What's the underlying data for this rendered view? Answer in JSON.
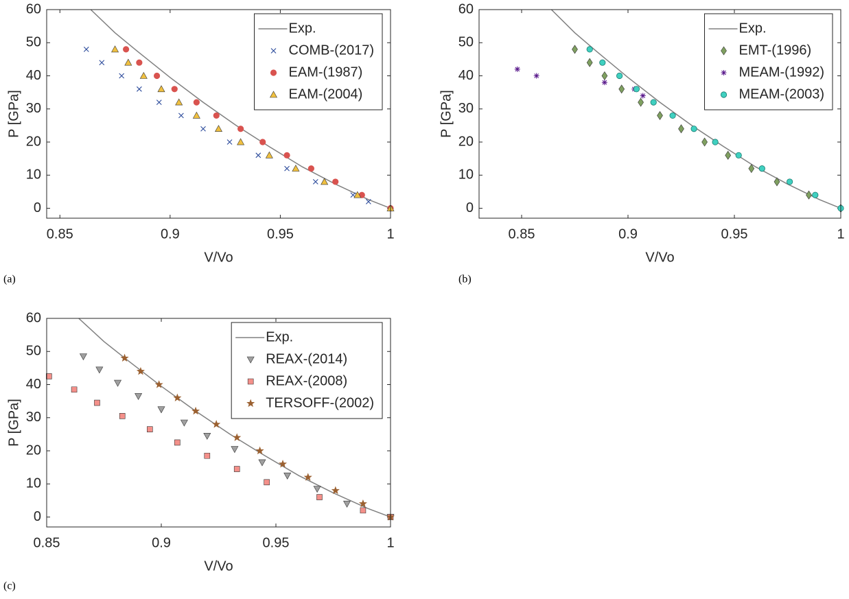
{
  "chart_data": [
    {
      "type": "scatter",
      "panel_label": "(a)",
      "xlabel": "V/Vo",
      "ylabel": "P [GPa]",
      "xlim": [
        0.844,
        1.0
      ],
      "ylim": [
        -3,
        60
      ],
      "xticks": [
        0.85,
        0.9,
        0.95,
        1
      ],
      "yticks": [
        0,
        10,
        20,
        30,
        40,
        50,
        60
      ],
      "legend": "upper right",
      "series": [
        {
          "name": "Exp.",
          "marker": "line",
          "color": "#808080",
          "x": [
            0.864,
            0.875,
            0.885,
            0.9,
            0.915,
            0.93,
            0.945,
            0.96,
            0.975,
            0.99,
            1.0
          ],
          "values": [
            60,
            53,
            47.5,
            39.5,
            32,
            25,
            18.6,
            12.5,
            7.3,
            2.6,
            0
          ]
        },
        {
          "name": "COMB-(2017)",
          "marker": "x",
          "color": "#2b4a9b",
          "x": [
            0.862,
            0.869,
            0.878,
            0.886,
            0.895,
            0.905,
            0.915,
            0.927,
            0.94,
            0.953,
            0.966,
            0.983,
            0.99
          ],
          "values": [
            48,
            44,
            40,
            36,
            32,
            28,
            24,
            20,
            16,
            12,
            8,
            4,
            2
          ]
        },
        {
          "name": "EAM-(1987)",
          "marker": "circle",
          "color": "#d9534f",
          "x": [
            0.88,
            0.886,
            0.894,
            0.902,
            0.912,
            0.921,
            0.932,
            0.942,
            0.953,
            0.964,
            0.975,
            0.987,
            1.0
          ],
          "values": [
            48,
            44,
            40,
            36,
            32,
            28,
            24,
            20,
            16,
            12,
            8,
            4,
            0
          ]
        },
        {
          "name": "EAM-(2004)",
          "marker": "triangle",
          "color": "#f0c040",
          "x": [
            0.875,
            0.881,
            0.888,
            0.896,
            0.904,
            0.912,
            0.922,
            0.932,
            0.945,
            0.957,
            0.97,
            0.985,
            1.0
          ],
          "values": [
            48,
            44,
            40,
            36,
            32,
            28,
            24,
            20,
            16,
            12,
            8,
            4,
            0
          ]
        }
      ]
    },
    {
      "type": "scatter",
      "panel_label": "(b)",
      "xlabel": "V/Vo",
      "ylabel": "P [GPa]",
      "xlim": [
        0.83,
        1.0
      ],
      "ylim": [
        -3,
        60
      ],
      "xticks": [
        0.85,
        0.9,
        0.95,
        1
      ],
      "yticks": [
        0,
        10,
        20,
        30,
        40,
        50,
        60
      ],
      "legend": "upper right",
      "series": [
        {
          "name": "Exp.",
          "marker": "line",
          "color": "#808080",
          "x": [
            0.864,
            0.875,
            0.885,
            0.9,
            0.915,
            0.93,
            0.945,
            0.96,
            0.975,
            0.99,
            1.0
          ],
          "values": [
            60,
            53,
            47.5,
            39.5,
            32,
            25,
            18.6,
            12.5,
            7.3,
            2.6,
            0
          ]
        },
        {
          "name": "EMT-(1996)",
          "marker": "diamond",
          "color": "#7fa060",
          "x": [
            0.875,
            0.882,
            0.889,
            0.897,
            0.906,
            0.915,
            0.925,
            0.936,
            0.947,
            0.958,
            0.97,
            0.985,
            1.0
          ],
          "values": [
            48,
            44,
            40,
            36,
            32,
            28,
            24,
            20,
            16,
            12,
            8,
            4,
            0
          ]
        },
        {
          "name": "MEAM-(1992)",
          "marker": "asterisk",
          "color": "#5a1a8c",
          "x": [
            0.848,
            0.857,
            0.889,
            0.903,
            0.907
          ],
          "values": [
            42,
            40,
            38,
            36,
            34
          ]
        },
        {
          "name": "MEAM-(2003)",
          "marker": "circle",
          "color": "#40d0c0",
          "x": [
            0.882,
            0.888,
            0.896,
            0.904,
            0.912,
            0.921,
            0.931,
            0.941,
            0.952,
            0.963,
            0.976,
            0.988,
            1.0
          ],
          "values": [
            48,
            44,
            40,
            36,
            32,
            28,
            24,
            20,
            16,
            12,
            8,
            4,
            0
          ]
        }
      ]
    },
    {
      "type": "scatter",
      "panel_label": "(c)",
      "xlabel": "V/Vo",
      "ylabel": "P [GPa]",
      "xlim": [
        0.85,
        1.0
      ],
      "ylim": [
        -3,
        60
      ],
      "xticks": [
        0.85,
        0.9,
        0.95,
        1
      ],
      "yticks": [
        0,
        10,
        20,
        30,
        40,
        50,
        60
      ],
      "legend": "upper right",
      "series": [
        {
          "name": "Exp.",
          "marker": "line",
          "color": "#808080",
          "x": [
            0.864,
            0.875,
            0.885,
            0.9,
            0.915,
            0.93,
            0.945,
            0.96,
            0.975,
            0.99,
            1.0
          ],
          "values": [
            60,
            53,
            47.5,
            39.5,
            32,
            25,
            18.6,
            12.5,
            7.3,
            2.6,
            0
          ]
        },
        {
          "name": "REAX-(2014)",
          "marker": "triangle-down",
          "color": "#a0a0a0",
          "x": [
            0.866,
            0.873,
            0.881,
            0.89,
            0.9,
            0.91,
            0.92,
            0.932,
            0.944,
            0.955,
            0.968,
            0.981,
            1.0
          ],
          "values": [
            48.5,
            44.5,
            40.5,
            36.5,
            32.5,
            28.5,
            24.5,
            20.5,
            16.5,
            12.5,
            8.5,
            4,
            0
          ]
        },
        {
          "name": "REAX-(2008)",
          "marker": "square",
          "color": "#f4908a",
          "x": [
            0.851,
            0.862,
            0.872,
            0.883,
            0.895,
            0.907,
            0.92,
            0.933,
            0.946,
            0.969,
            0.988,
            1.0
          ],
          "values": [
            42.5,
            38.5,
            34.5,
            30.5,
            26.5,
            22.5,
            18.5,
            14.5,
            10.5,
            6,
            2,
            0
          ]
        },
        {
          "name": "TERSOFF-(2002)",
          "marker": "star",
          "color": "#9b6030",
          "x": [
            0.884,
            0.891,
            0.899,
            0.907,
            0.915,
            0.924,
            0.933,
            0.943,
            0.953,
            0.964,
            0.976,
            0.988,
            1.0
          ],
          "values": [
            48,
            44,
            40,
            36,
            32,
            28,
            24,
            20,
            16,
            12,
            8,
            4,
            0
          ]
        }
      ]
    }
  ]
}
